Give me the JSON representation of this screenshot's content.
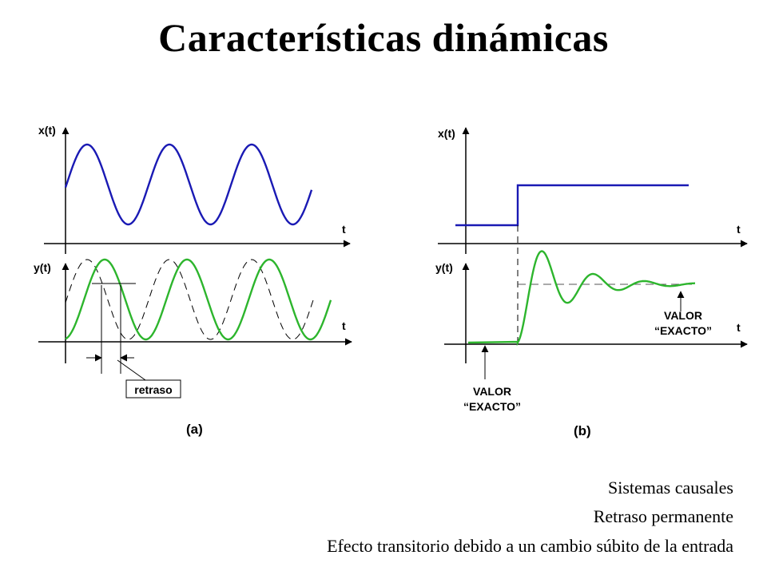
{
  "title": "Características dinámicas",
  "panel_a": {
    "label": "(a)",
    "input_axis": "x(t)",
    "output_axis": "y(t)",
    "time_axis": "t",
    "delay_label": "retraso"
  },
  "panel_b": {
    "label": "(b)",
    "input_axis": "x(t)",
    "output_axis": "y(t)",
    "time_axis": "t",
    "final_value_line1": "VALOR",
    "final_value_line2": "“EXACTO”",
    "initial_value_line1": "VALOR",
    "initial_value_line2": "“EXACTO”"
  },
  "captions": [
    "Sistemas causales",
    "Retraso permanente",
    "Efecto transitorio debido a un cambio súbito de la entrada"
  ],
  "colors": {
    "input": "#1a1ab4",
    "output": "#2db52d",
    "axes": "#000000",
    "reference": "#000000"
  }
}
